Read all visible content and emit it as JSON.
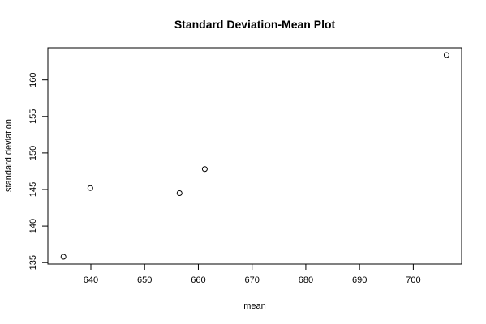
{
  "chart_data": {
    "type": "scatter",
    "title": "Standard Deviation-Mean Plot",
    "xlabel": "mean",
    "ylabel": "standard deviation",
    "x_ticks": [
      640,
      650,
      660,
      670,
      680,
      690,
      700
    ],
    "y_ticks": [
      135,
      140,
      145,
      150,
      155,
      160
    ],
    "xlim": [
      632.0,
      709.0
    ],
    "ylim": [
      134.8,
      164.4
    ],
    "grid": false,
    "points": [
      {
        "x": 634.9,
        "y": 135.8
      },
      {
        "x": 639.9,
        "y": 145.2
      },
      {
        "x": 656.5,
        "y": 144.5
      },
      {
        "x": 661.2,
        "y": 147.8
      },
      {
        "x": 706.2,
        "y": 163.4
      }
    ],
    "marker": "open-circle",
    "colors": {
      "marker": "#000000",
      "axis": "#000000",
      "background": "#ffffff"
    }
  }
}
